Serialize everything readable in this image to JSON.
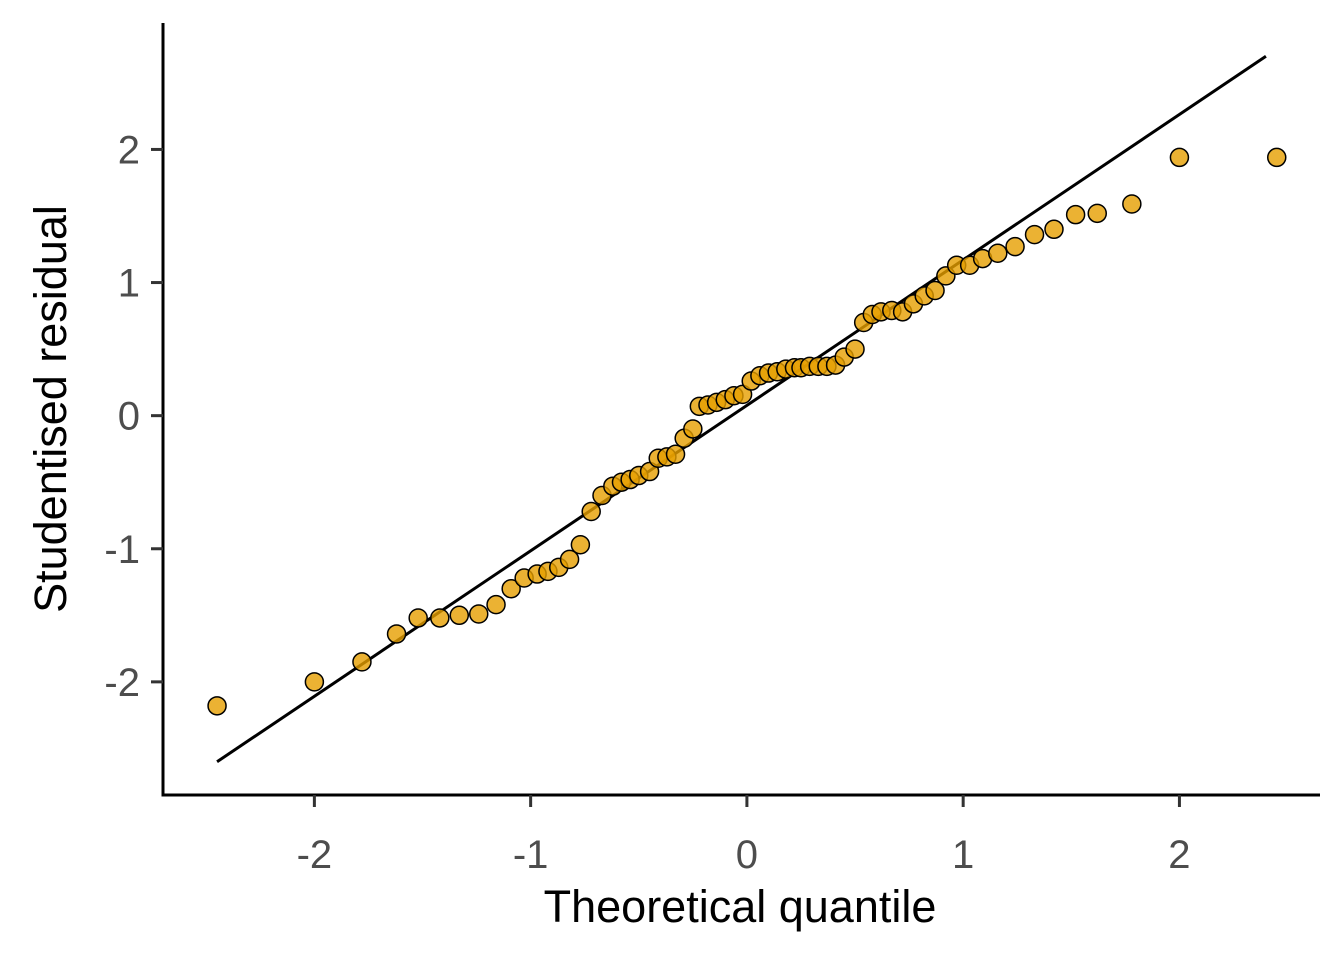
{
  "chart_data": {
    "type": "scatter",
    "title": "",
    "xlabel": "Theoretical quantile",
    "ylabel": "Studentised residual",
    "xlim": [
      -2.7,
      2.65
    ],
    "ylim": [
      -2.85,
      2.95
    ],
    "xticks": [
      -2,
      -1,
      0,
      1,
      2
    ],
    "yticks": [
      -2,
      -1,
      0,
      1,
      2
    ],
    "xtick_labels": [
      "-2",
      "-1",
      "0",
      "1",
      "2"
    ],
    "ytick_labels": [
      "-2",
      "-1",
      "0",
      "1",
      "2"
    ],
    "grid": false,
    "legend": "none",
    "point_color": "#E69F00",
    "point_edge_color": "#000000",
    "reference_line": {
      "x": [
        -2.45,
        2.4
      ],
      "y": [
        -2.6,
        2.7
      ]
    },
    "series": [
      {
        "x": [
          -2.45,
          -2.0,
          -1.78,
          -1.62,
          -1.52,
          -1.42,
          -1.33,
          -1.24,
          -1.16,
          -1.09,
          -1.03,
          -0.97,
          -0.92,
          -0.87,
          -0.82,
          -0.77,
          -0.72,
          -0.67,
          -0.62,
          -0.58,
          -0.54,
          -0.5,
          -0.45,
          -0.41,
          -0.37,
          -0.33,
          -0.29,
          -0.25,
          -0.22,
          -0.18,
          -0.14,
          -0.1,
          -0.06,
          -0.02,
          0.02,
          0.06,
          0.1,
          0.14,
          0.18,
          0.22,
          0.25,
          0.29,
          0.33,
          0.37,
          0.41,
          0.45,
          0.5,
          0.54,
          0.58,
          0.62,
          0.67,
          0.72,
          0.77,
          0.82,
          0.87,
          0.92,
          0.97,
          1.03,
          1.09,
          1.16,
          1.24,
          1.33,
          1.42,
          1.52,
          1.62,
          1.78,
          2.0,
          2.45
        ],
        "y": [
          -2.18,
          -2.0,
          -1.85,
          -1.64,
          -1.52,
          -1.52,
          -1.5,
          -1.49,
          -1.42,
          -1.3,
          -1.22,
          -1.19,
          -1.17,
          -1.14,
          -1.08,
          -0.97,
          -0.72,
          -0.6,
          -0.53,
          -0.5,
          -0.48,
          -0.45,
          -0.42,
          -0.32,
          -0.31,
          -0.29,
          -0.17,
          -0.1,
          0.07,
          0.08,
          0.1,
          0.12,
          0.15,
          0.16,
          0.26,
          0.3,
          0.32,
          0.33,
          0.35,
          0.36,
          0.36,
          0.37,
          0.37,
          0.37,
          0.38,
          0.44,
          0.5,
          0.7,
          0.76,
          0.78,
          0.79,
          0.78,
          0.84,
          0.9,
          0.94,
          1.05,
          1.13,
          1.13,
          1.18,
          1.22,
          1.27,
          1.36,
          1.4,
          1.51,
          1.52,
          1.59,
          1.94,
          1.94
        ]
      }
    ]
  }
}
